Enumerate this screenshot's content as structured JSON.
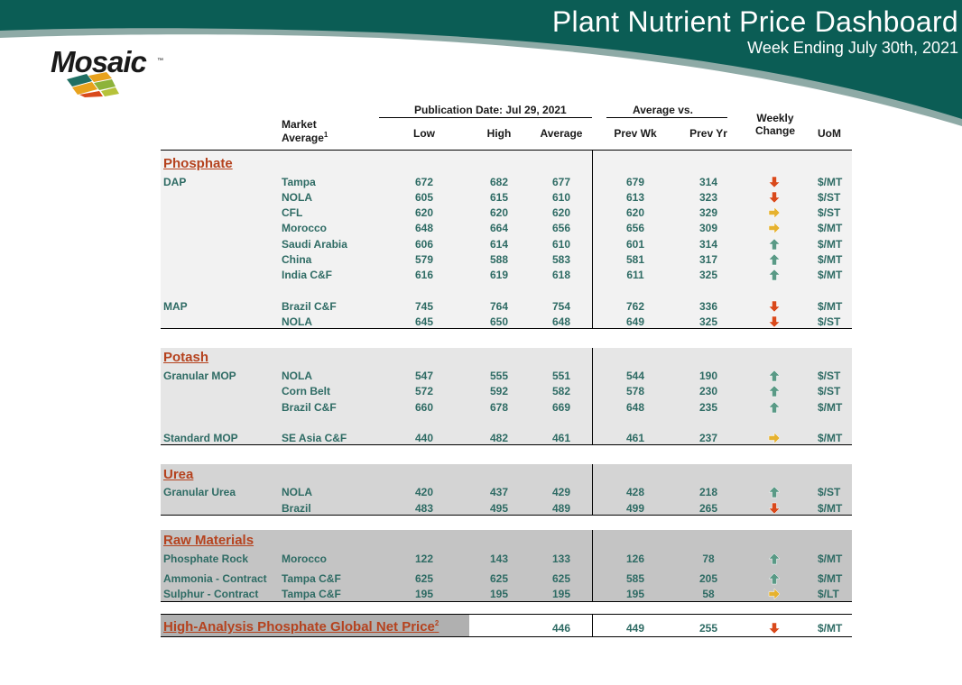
{
  "header": {
    "title": "Plant Nutrient Price Dashboard",
    "subtitle": "Week Ending July 30th, 2021",
    "logo_text": "Mosaic",
    "logo_tm": "™"
  },
  "columns": {
    "publication": "Publication Date:  Jul 29, 2021",
    "average_vs": "Average  vs.",
    "market_line1": "Market",
    "market_line2": "Average",
    "market_sup": "1",
    "low": "Low",
    "high": "High",
    "average": "Average",
    "prev_wk": "Prev Wk",
    "prev_yr": "Prev Yr",
    "weekly_line1": "Weekly",
    "weekly_line2": "Change",
    "uom": "UoM"
  },
  "sections": {
    "phosphate": {
      "title": "Phosphate",
      "rows": [
        {
          "product": "DAP",
          "market": "Tampa",
          "low": "672",
          "high": "682",
          "avg": "677",
          "prev_wk": "679",
          "prev_yr": "314",
          "change": "down",
          "uom": "$/MT"
        },
        {
          "product": "",
          "market": "NOLA",
          "low": "605",
          "high": "615",
          "avg": "610",
          "prev_wk": "613",
          "prev_yr": "323",
          "change": "down",
          "uom": "$/ST"
        },
        {
          "product": "",
          "market": "CFL",
          "low": "620",
          "high": "620",
          "avg": "620",
          "prev_wk": "620",
          "prev_yr": "329",
          "change": "flat",
          "uom": "$/ST"
        },
        {
          "product": "",
          "market": "Morocco",
          "low": "648",
          "high": "664",
          "avg": "656",
          "prev_wk": "656",
          "prev_yr": "309",
          "change": "flat",
          "uom": "$/MT"
        },
        {
          "product": "",
          "market": "Saudi Arabia",
          "low": "606",
          "high": "614",
          "avg": "610",
          "prev_wk": "601",
          "prev_yr": "314",
          "change": "up",
          "uom": "$/MT"
        },
        {
          "product": "",
          "market": "China",
          "low": "579",
          "high": "588",
          "avg": "583",
          "prev_wk": "581",
          "prev_yr": "317",
          "change": "up",
          "uom": "$/MT"
        },
        {
          "product": "",
          "market": "India C&F",
          "low": "616",
          "high": "619",
          "avg": "618",
          "prev_wk": "611",
          "prev_yr": "325",
          "change": "up",
          "uom": "$/MT"
        },
        {
          "product": "MAP",
          "market": "Brazil C&F",
          "low": "745",
          "high": "764",
          "avg": "754",
          "prev_wk": "762",
          "prev_yr": "336",
          "change": "down",
          "uom": "$/MT"
        },
        {
          "product": "",
          "market": "NOLA",
          "low": "645",
          "high": "650",
          "avg": "648",
          "prev_wk": "649",
          "prev_yr": "325",
          "change": "down",
          "uom": "$/ST"
        }
      ]
    },
    "potash": {
      "title": "Potash",
      "rows": [
        {
          "product": "Granular MOP",
          "market": "NOLA",
          "low": "547",
          "high": "555",
          "avg": "551",
          "prev_wk": "544",
          "prev_yr": "190",
          "change": "up",
          "uom": "$/ST"
        },
        {
          "product": "",
          "market": "Corn Belt",
          "low": "572",
          "high": "592",
          "avg": "582",
          "prev_wk": "578",
          "prev_yr": "230",
          "change": "up",
          "uom": "$/ST"
        },
        {
          "product": "",
          "market": "Brazil C&F",
          "low": "660",
          "high": "678",
          "avg": "669",
          "prev_wk": "648",
          "prev_yr": "235",
          "change": "up",
          "uom": "$/MT"
        },
        {
          "product": "Standard MOP",
          "market": "SE Asia C&F",
          "low": "440",
          "high": "482",
          "avg": "461",
          "prev_wk": "461",
          "prev_yr": "237",
          "change": "flat",
          "uom": "$/MT"
        }
      ]
    },
    "urea": {
      "title": "Urea",
      "rows": [
        {
          "product": "Granular Urea",
          "market": "NOLA",
          "low": "420",
          "high": "437",
          "avg": "429",
          "prev_wk": "428",
          "prev_yr": "218",
          "change": "up",
          "uom": "$/ST"
        },
        {
          "product": "",
          "market": "Brazil",
          "low": "483",
          "high": "495",
          "avg": "489",
          "prev_wk": "499",
          "prev_yr": "265",
          "change": "down",
          "uom": "$/MT"
        }
      ]
    },
    "raw": {
      "title": "Raw Materials",
      "rows": [
        {
          "product": "Phosphate Rock",
          "market": "Morocco",
          "low": "122",
          "high": "143",
          "avg": "133",
          "prev_wk": "126",
          "prev_yr": "78",
          "change": "up",
          "uom": "$/MT"
        },
        {
          "product": "Ammonia - Contract",
          "market": "Tampa C&F",
          "low": "625",
          "high": "625",
          "avg": "625",
          "prev_wk": "585",
          "prev_yr": "205",
          "change": "up",
          "uom": "$/MT"
        },
        {
          "product": "Sulphur - Contract",
          "market": "Tampa C&F",
          "low": "195",
          "high": "195",
          "avg": "195",
          "prev_wk": "195",
          "prev_yr": "58",
          "change": "flat",
          "uom": "$/LT"
        }
      ]
    },
    "global": {
      "title": "High-Analysis Phosphate Global Net Price",
      "sup": "2",
      "avg": "446",
      "prev_wk": "449",
      "prev_yr": "255",
      "change": "down",
      "uom": "$/MT"
    }
  },
  "colors": {
    "header_teal": "#0b5d55",
    "header_light": "#8eaaa6",
    "text_teal": "#2e6b64",
    "section_red": "#b5421e",
    "arrow_up": "#5a9a86",
    "arrow_down": "#d9491b",
    "arrow_flat": "#e6b22f"
  }
}
